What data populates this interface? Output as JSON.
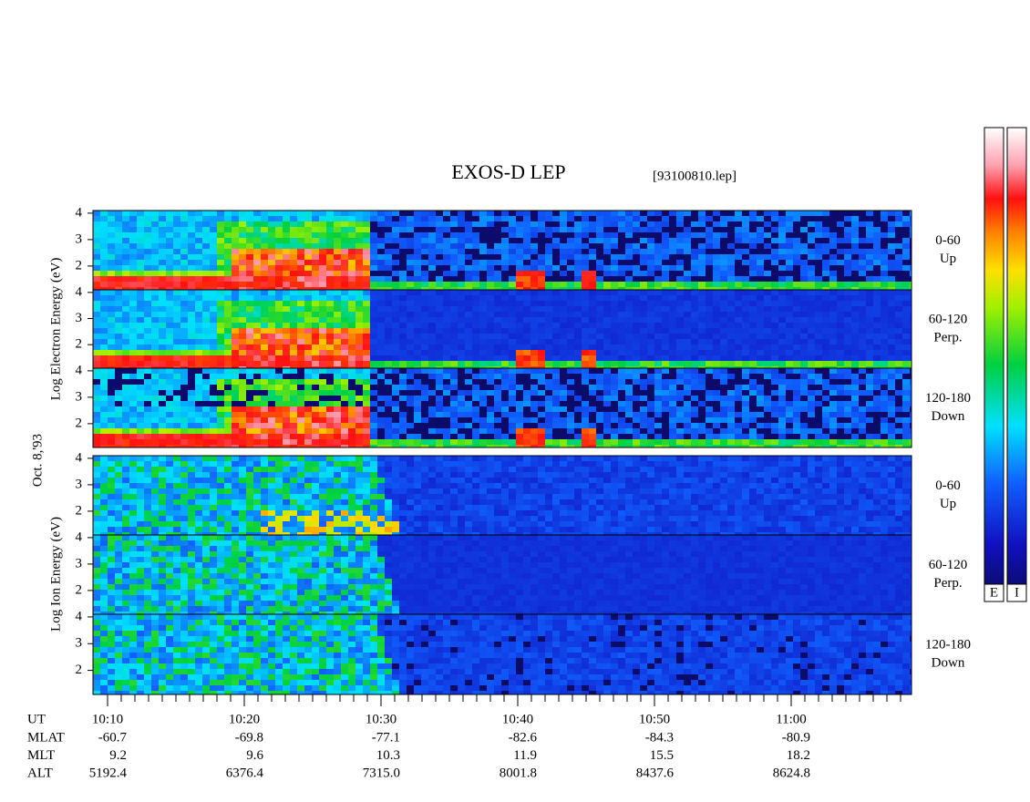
{
  "title": "EXOS-D LEP",
  "file": "[93100810.lep]",
  "date_label": "Oct. 8,'93",
  "electron_axis_label": "Log Electron Energy (eV)",
  "ion_axis_label": "Log Ion Energy (eV)",
  "panels": [
    {
      "species": "electron",
      "pitch": "0-60",
      "direction": "Up",
      "ylim": [
        1.1,
        4.1
      ],
      "yticks": [
        2,
        3,
        4
      ]
    },
    {
      "species": "electron",
      "pitch": "60-120",
      "direction": "Perp.",
      "ylim": [
        1.1,
        4.1
      ],
      "yticks": [
        2,
        3,
        4
      ]
    },
    {
      "species": "electron",
      "pitch": "120-180",
      "direction": "Down",
      "ylim": [
        1.1,
        4.1
      ],
      "yticks": [
        2,
        3,
        4
      ]
    },
    {
      "species": "ion",
      "pitch": "0-60",
      "direction": "Up",
      "ylim": [
        1.1,
        4.1
      ],
      "yticks": [
        2,
        3,
        4
      ]
    },
    {
      "species": "ion",
      "pitch": "60-120",
      "direction": "Perp.",
      "ylim": [
        1.1,
        4.1
      ],
      "yticks": [
        2,
        3,
        4
      ]
    },
    {
      "species": "ion",
      "pitch": "120-180",
      "direction": "Down",
      "ylim": [
        1.1,
        4.1
      ],
      "yticks": [
        2,
        3,
        4
      ]
    }
  ],
  "ephemeris": {
    "columns": [
      "10:10",
      "10:20",
      "10:30",
      "10:40",
      "10:50",
      "11:00"
    ],
    "row_label_ut": "UT",
    "rows": [
      {
        "label": "MLAT",
        "values": [
          "-60.7",
          "-69.8",
          "-77.1",
          "-82.6",
          "-84.3",
          "-80.9"
        ]
      },
      {
        "label": "MLT",
        "values": [
          "9.2",
          "9.6",
          "10.3",
          "11.9",
          "15.5",
          "18.2"
        ]
      },
      {
        "label": "ALT",
        "values": [
          "5192.4",
          "6376.4",
          "7315.0",
          "8001.8",
          "8437.6",
          "8624.8"
        ]
      }
    ]
  },
  "colorbar_labels": [
    "E",
    "I"
  ]
}
